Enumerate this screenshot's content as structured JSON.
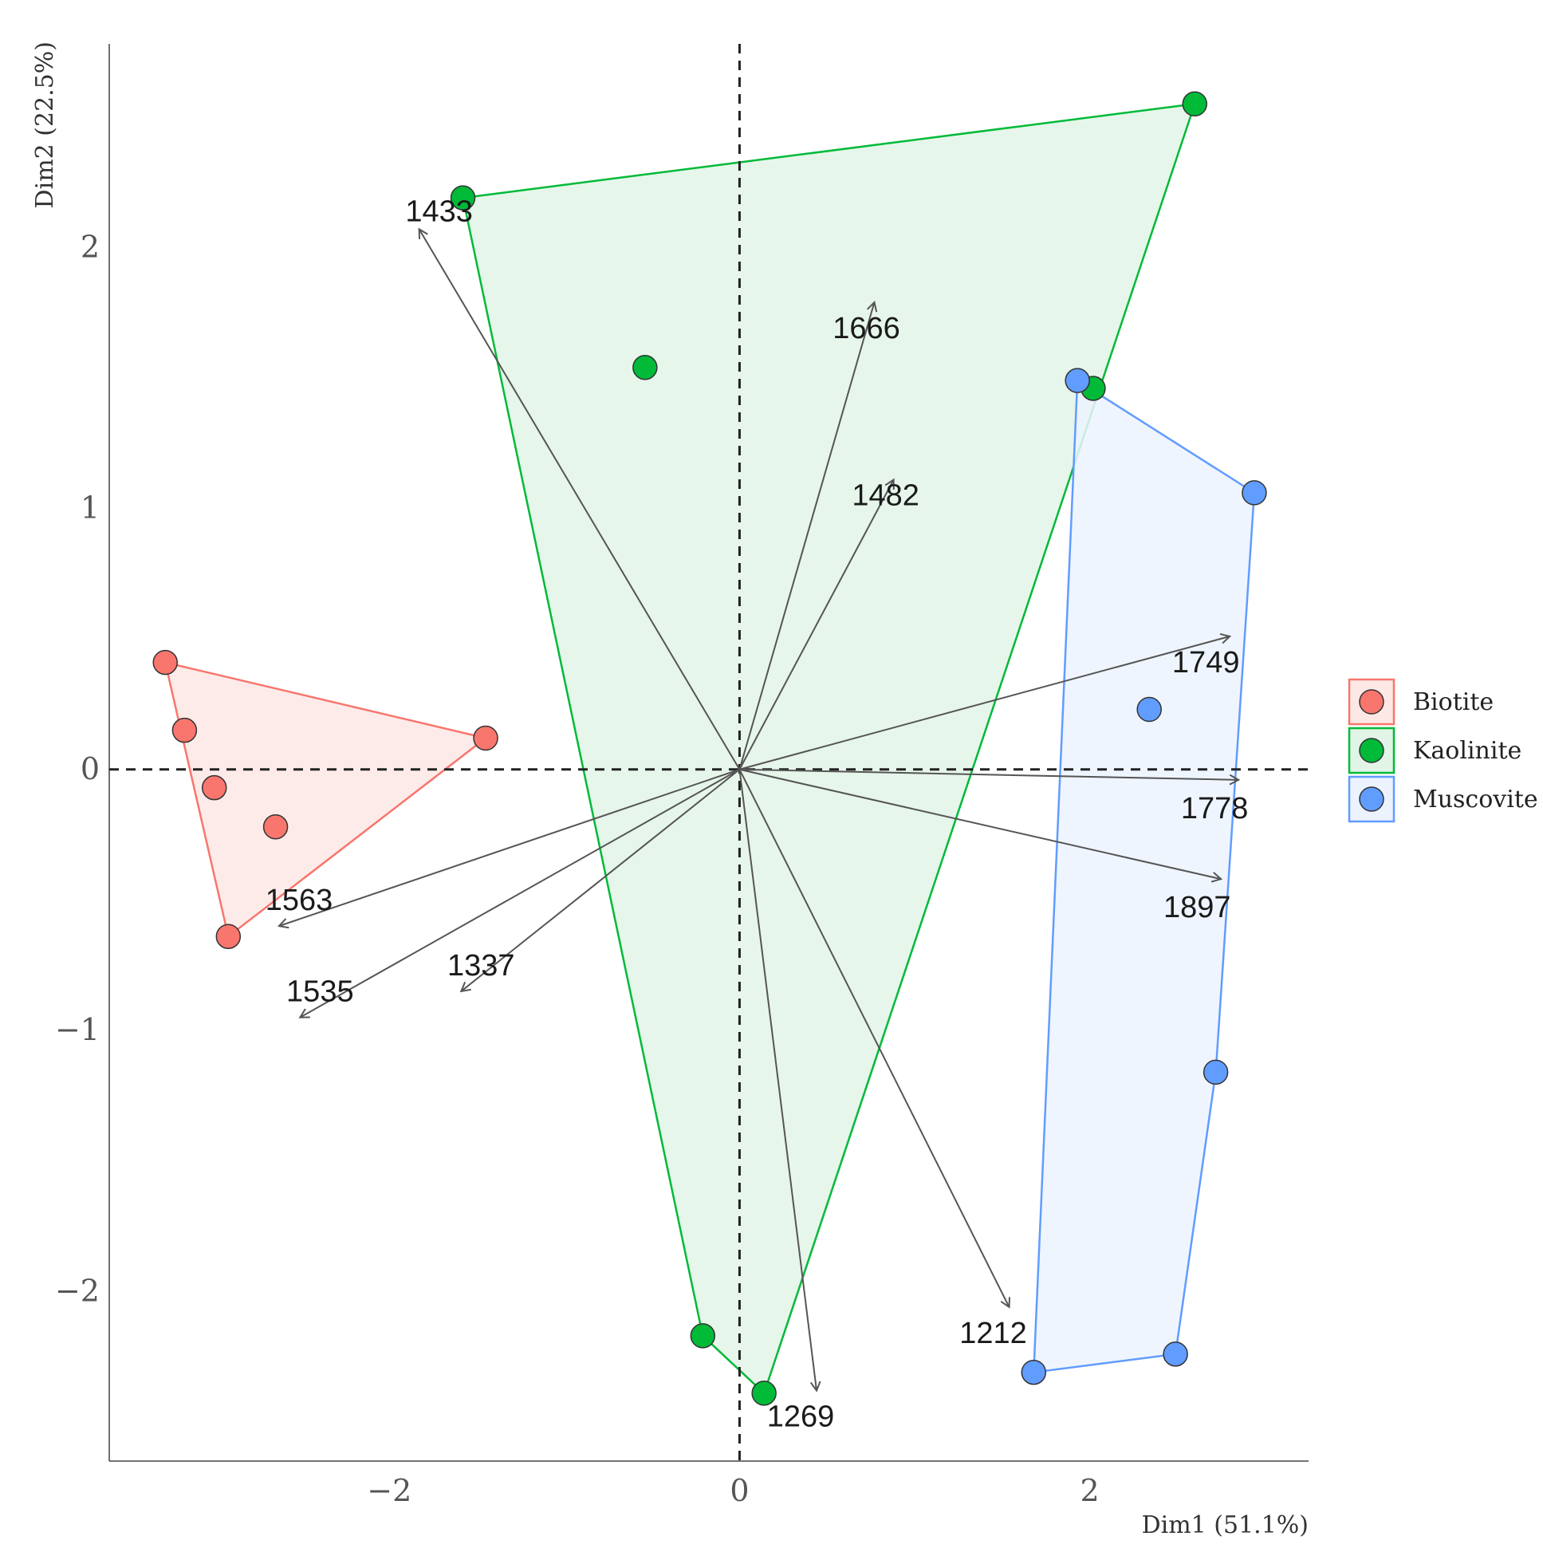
{
  "chart_data": {
    "type": "scatter",
    "subtype": "pca-biplot",
    "title": "",
    "xlabel": "Dim1 (51.1%)",
    "ylabel": "Dim2 (22.5%)",
    "xlim": [
      -3.6,
      3.25
    ],
    "ylim": [
      -2.65,
      2.78
    ],
    "xticks": [
      {
        "value": -2,
        "label": "−2"
      },
      {
        "value": 0,
        "label": "0"
      },
      {
        "value": 2,
        "label": "2"
      }
    ],
    "yticks": [
      {
        "value": -2,
        "label": "−2"
      },
      {
        "value": -1,
        "label": "−1"
      },
      {
        "value": 0,
        "label": "0"
      },
      {
        "value": 1,
        "label": "1"
      },
      {
        "value": 2,
        "label": "2"
      }
    ],
    "reference_lines": {
      "x": 0,
      "y": 0,
      "style": "dashed"
    },
    "legend_position": "right",
    "series": [
      {
        "name": "Biotite",
        "color": "#F8766D",
        "hull_fill": "#FDE8E6",
        "points": [
          [
            -3.28,
            0.41
          ],
          [
            -3.17,
            0.15
          ],
          [
            -3.0,
            -0.07
          ],
          [
            -2.65,
            -0.22
          ],
          [
            -2.92,
            -0.64
          ],
          [
            -1.45,
            0.12
          ]
        ],
        "hull": [
          [
            -3.28,
            0.41
          ],
          [
            -1.45,
            0.12
          ],
          [
            -2.92,
            -0.64
          ]
        ]
      },
      {
        "name": "Kaolinite",
        "color": "#00BA38",
        "hull_fill": "#E2F4E6",
        "points": [
          [
            -1.58,
            2.19
          ],
          [
            2.6,
            2.55
          ],
          [
            -0.54,
            1.54
          ],
          [
            2.02,
            1.46
          ],
          [
            -0.21,
            -2.17
          ],
          [
            0.14,
            -2.39
          ]
        ],
        "hull": [
          [
            -1.58,
            2.19
          ],
          [
            2.6,
            2.55
          ],
          [
            0.14,
            -2.39
          ],
          [
            -0.21,
            -2.17
          ]
        ]
      },
      {
        "name": "Muscovite",
        "color": "#619CFF",
        "hull_fill": "#ECF3FE",
        "points": [
          [
            1.93,
            1.49
          ],
          [
            2.94,
            1.06
          ],
          [
            2.34,
            0.23
          ],
          [
            2.72,
            -1.16
          ],
          [
            2.49,
            -2.24
          ],
          [
            1.68,
            -2.31
          ]
        ],
        "hull": [
          [
            1.93,
            1.49
          ],
          [
            2.94,
            1.06
          ],
          [
            2.72,
            -1.16
          ],
          [
            2.49,
            -2.24
          ],
          [
            1.68,
            -2.31
          ]
        ]
      }
    ],
    "vectors": [
      {
        "label": "1433",
        "x": -1.83,
        "y": 2.07
      },
      {
        "label": "1666",
        "x": 0.77,
        "y": 1.79
      },
      {
        "label": "1482",
        "x": 0.88,
        "y": 1.11
      },
      {
        "label": "1749",
        "x": 2.8,
        "y": 0.51
      },
      {
        "label": "1778",
        "x": 2.85,
        "y": -0.04
      },
      {
        "label": "1897",
        "x": 2.75,
        "y": -0.42
      },
      {
        "label": "1563",
        "x": -2.63,
        "y": -0.6
      },
      {
        "label": "1337",
        "x": -1.59,
        "y": -0.85
      },
      {
        "label": "1535",
        "x": -2.51,
        "y": -0.95
      },
      {
        "label": "1212",
        "x": 1.54,
        "y": -2.06
      },
      {
        "label": "1269",
        "x": 0.44,
        "y": -2.38
      }
    ]
  }
}
